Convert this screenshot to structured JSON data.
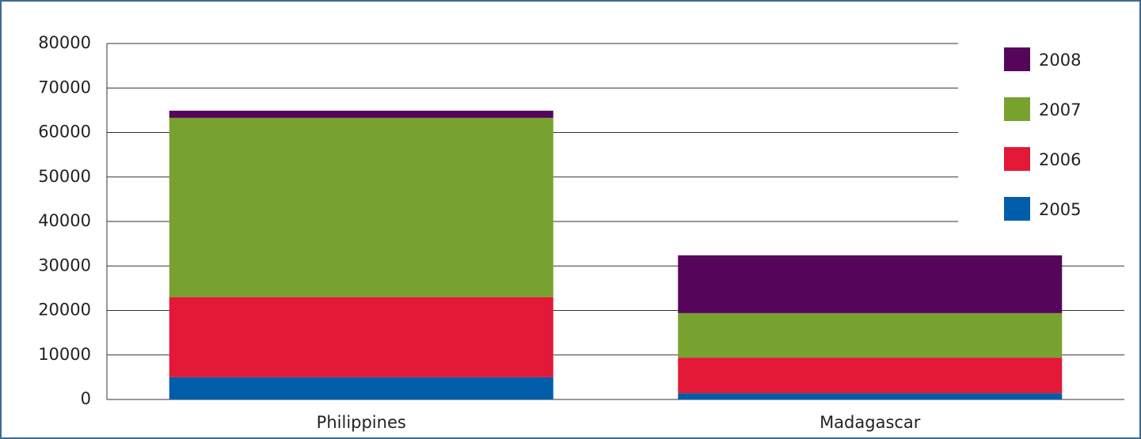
{
  "chart_data": {
    "type": "stacked_bar",
    "categories": [
      "Philippines",
      "Madagascar"
    ],
    "series": [
      {
        "name": "2005",
        "color": "#005daa",
        "values": [
          5000,
          1400
        ]
      },
      {
        "name": "2006",
        "color": "#e31937",
        "values": [
          18000,
          8000
        ]
      },
      {
        "name": "2007",
        "color": "#78a22f",
        "values": [
          40300,
          10000
        ]
      },
      {
        "name": "2008",
        "color": "#55065a",
        "values": [
          1600,
          13000
        ]
      }
    ],
    "ylim": [
      0,
      80000
    ],
    "yticks": [
      0,
      10000,
      20000,
      30000,
      40000,
      50000,
      60000,
      70000,
      80000
    ],
    "grid": true,
    "legend": "upper right"
  }
}
